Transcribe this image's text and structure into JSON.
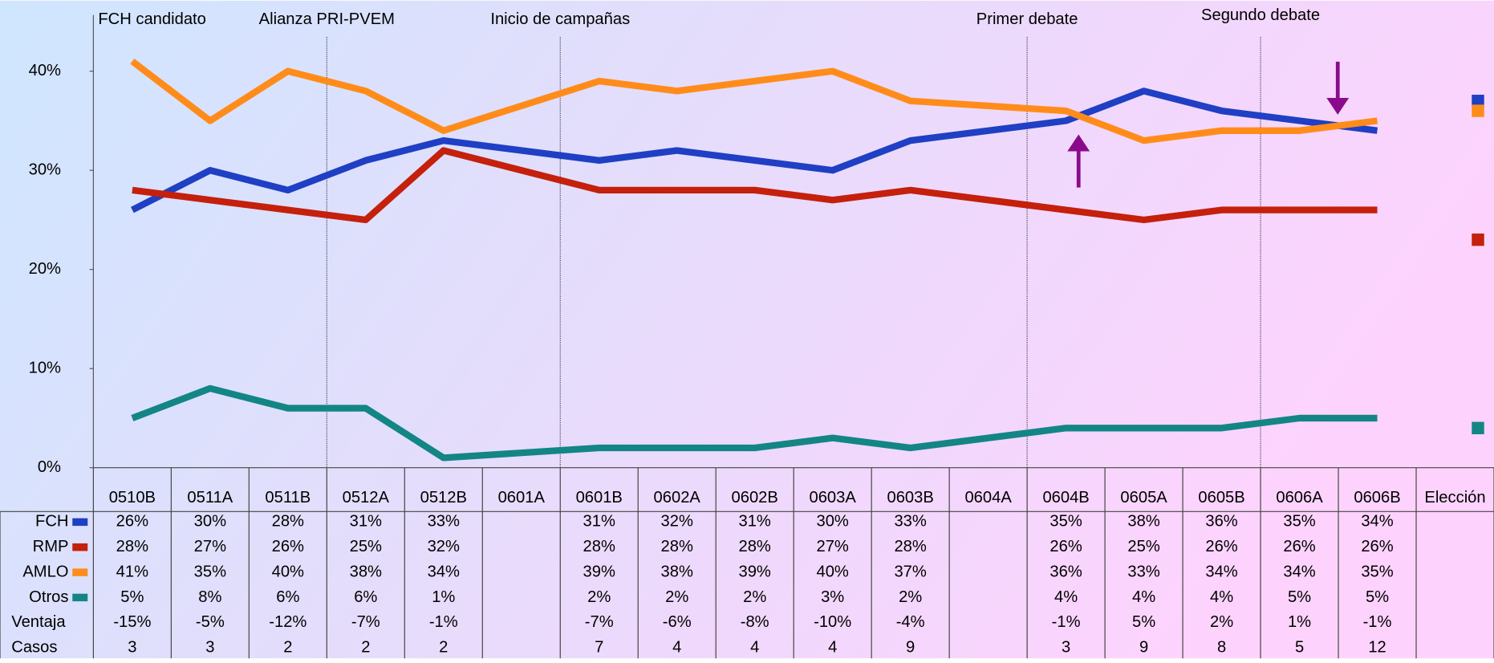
{
  "chart_data": {
    "type": "line",
    "categories": [
      "0510B",
      "0511A",
      "0511B",
      "0512A",
      "0512B",
      "0601A",
      "0601B",
      "0602A",
      "0602B",
      "0603A",
      "0603B",
      "0604A",
      "0604B",
      "0605A",
      "0605B",
      "0606A",
      "0606B",
      "Elección"
    ],
    "connect_gaps": true,
    "ylim": [
      0,
      45
    ],
    "yticks": [
      {
        "value": 0,
        "label": "0%"
      },
      {
        "value": 10,
        "label": "10%"
      },
      {
        "value": 20,
        "label": "20%"
      },
      {
        "value": 30,
        "label": "30%"
      },
      {
        "value": 40,
        "label": "40%"
      }
    ],
    "grid": false,
    "series": [
      {
        "name": "FCH",
        "color": "#1f3fc4",
        "election": 37,
        "values": [
          26,
          30,
          28,
          31,
          33,
          null,
          31,
          32,
          31,
          30,
          33,
          null,
          35,
          38,
          36,
          35,
          34,
          null
        ],
        "value_labels": [
          "26%",
          "30%",
          "28%",
          "31%",
          "33%",
          null,
          "31%",
          "32%",
          "31%",
          "30%",
          "33%",
          null,
          "35%",
          "38%",
          "36%",
          "35%",
          "34%",
          null
        ]
      },
      {
        "name": "RMP",
        "color": "#c4200c",
        "election": 23,
        "values": [
          28,
          27,
          26,
          25,
          32,
          null,
          28,
          28,
          28,
          27,
          28,
          null,
          26,
          25,
          26,
          26,
          26,
          null
        ],
        "value_labels": [
          "28%",
          "27%",
          "26%",
          "25%",
          "32%",
          null,
          "28%",
          "28%",
          "28%",
          "27%",
          "28%",
          null,
          "26%",
          "25%",
          "26%",
          "26%",
          "26%",
          null
        ]
      },
      {
        "name": "AMLO",
        "color": "#ff8c1a",
        "election": 36,
        "values": [
          41,
          35,
          40,
          38,
          34,
          null,
          39,
          38,
          39,
          40,
          37,
          null,
          36,
          33,
          34,
          34,
          35,
          null
        ],
        "value_labels": [
          "41%",
          "35%",
          "40%",
          "38%",
          "34%",
          null,
          "39%",
          "38%",
          "39%",
          "40%",
          "37%",
          null,
          "36%",
          "33%",
          "34%",
          "34%",
          "35%",
          null
        ]
      },
      {
        "name": "Otros",
        "color": "#138585",
        "election": 4,
        "values": [
          5,
          8,
          6,
          6,
          1,
          null,
          2,
          2,
          2,
          3,
          2,
          null,
          4,
          4,
          4,
          5,
          5,
          null
        ],
        "value_labels": [
          "5%",
          "8%",
          "6%",
          "6%",
          "1%",
          null,
          "2%",
          "2%",
          "2%",
          "3%",
          "2%",
          null,
          "4%",
          "4%",
          "4%",
          "5%",
          "5%",
          null
        ]
      }
    ],
    "table_rows": [
      {
        "name": "Ventaja",
        "values": [
          -15,
          -5,
          -12,
          -7,
          -1,
          null,
          -7,
          -6,
          -8,
          -10,
          -4,
          null,
          -1,
          5,
          2,
          1,
          -1,
          null
        ],
        "value_labels": [
          "-15%",
          "-5%",
          "-12%",
          "-7%",
          "-1%",
          null,
          "-7%",
          "-6%",
          "-8%",
          "-10%",
          "-4%",
          null,
          "-1%",
          "5%",
          "2%",
          "1%",
          "-1%",
          null
        ]
      },
      {
        "name": "Casos",
        "values": [
          3,
          3,
          2,
          2,
          2,
          null,
          7,
          4,
          4,
          4,
          9,
          null,
          3,
          9,
          8,
          5,
          12,
          null
        ]
      }
    ],
    "events": [
      {
        "label": "FCH candidato",
        "at": "0510B"
      },
      {
        "label": "Alianza PRI-PVEM",
        "at": "0512A"
      },
      {
        "label": "Inicio de campañas",
        "at": "0601B"
      },
      {
        "label": "Primer debate",
        "at": "0604B"
      },
      {
        "label": "Segundo debate",
        "at": "0606A"
      }
    ]
  }
}
